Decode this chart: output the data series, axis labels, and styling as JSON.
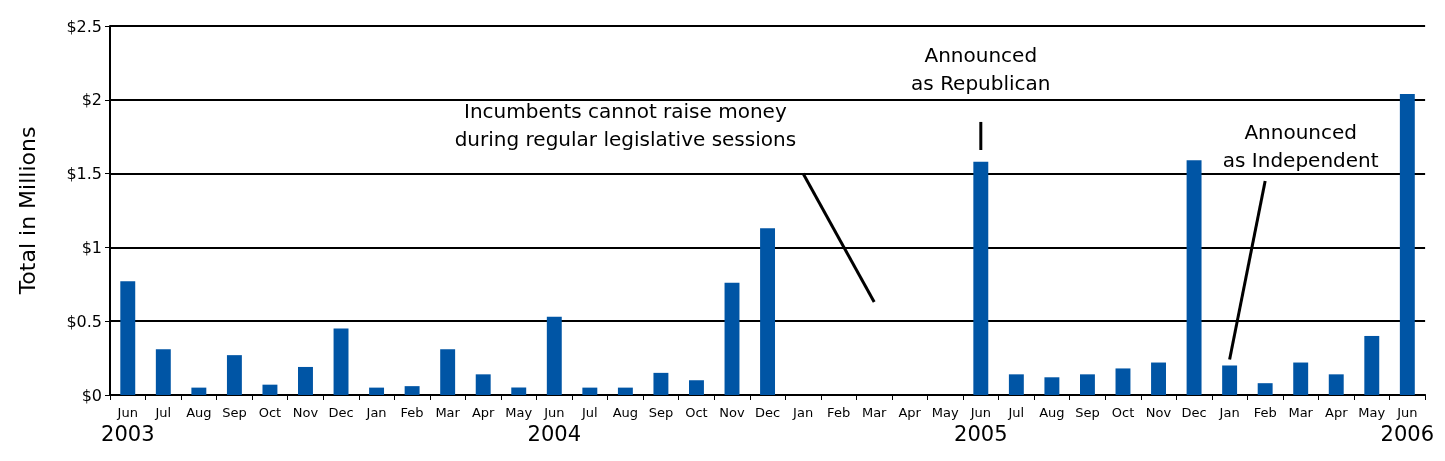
{
  "chart_data": {
    "type": "bar",
    "ylabel": "Total in Millions",
    "categories": [
      "Jun\n2003",
      "Jul",
      "Aug",
      "Sep",
      "Oct",
      "Nov",
      "Dec",
      "Jan",
      "Feb",
      "Mar",
      "Apr",
      "May",
      "Jun\n2004",
      "Jul",
      "Aug",
      "Sep",
      "Oct",
      "Nov",
      "Dec",
      "Jan",
      "Feb",
      "Mar",
      "Apr",
      "May",
      "Jun\n2005",
      "Jul",
      "Aug",
      "Sep",
      "Oct",
      "Nov",
      "Dec",
      "Jan",
      "Feb",
      "Mar",
      "Apr",
      "May",
      "Jun\n2006"
    ],
    "values": [
      0.77,
      0.31,
      0.05,
      0.27,
      0.07,
      0.19,
      0.45,
      0.05,
      0.06,
      0.31,
      0.14,
      0.05,
      0.53,
      0.05,
      0.05,
      0.15,
      0.1,
      0.76,
      1.13,
      0,
      0,
      0,
      0,
      0,
      1.58,
      0.14,
      0.12,
      0.14,
      0.18,
      0.22,
      1.59,
      0.2,
      0.08,
      0.22,
      0.14,
      0.4,
      2.04
    ],
    "color": "#0055a5",
    "ylim": [
      0,
      2.5
    ],
    "yticks": [
      {
        "value": 0,
        "label": "$0"
      },
      {
        "value": 0.5,
        "label": "$0.5"
      },
      {
        "value": 1,
        "label": "$1"
      },
      {
        "value": 1.5,
        "label": "$1.5"
      },
      {
        "value": 2,
        "label": "$2"
      },
      {
        "value": 2.5,
        "label": "$2.5"
      }
    ],
    "grid": "y",
    "annotations": [
      "Incumbents cannot raise money\nduring regular legislative sessions",
      "Announced\nas Republican",
      "Announced\nas Independent"
    ]
  }
}
